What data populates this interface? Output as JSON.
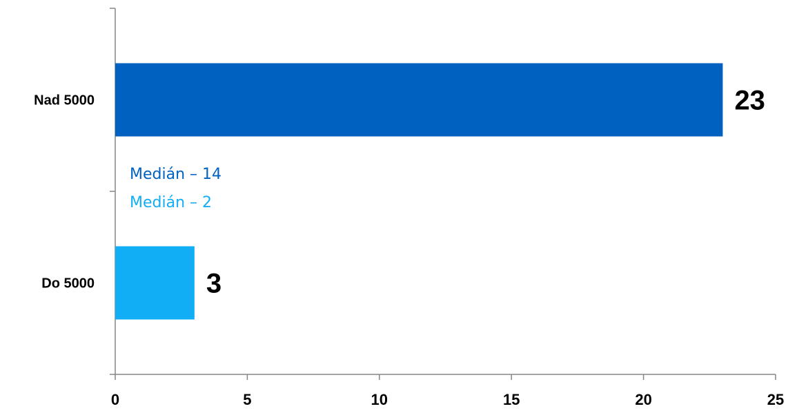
{
  "chart_data": {
    "type": "bar",
    "orientation": "horizontal",
    "categories": [
      "Do 5000",
      "Nad 5000"
    ],
    "values": [
      3,
      23
    ],
    "colors": [
      "#11AEF5",
      "#0061C0"
    ],
    "data_labels": [
      "3",
      "23"
    ],
    "xlim": [
      0,
      25
    ],
    "xticks": [
      0,
      5,
      10,
      15,
      20,
      25
    ],
    "title": "",
    "xlabel": "",
    "ylabel": "",
    "grid": false,
    "annotations": [
      {
        "text": "Medián – 14",
        "color": "#0061C0"
      },
      {
        "text": "Medián – 2",
        "color": "#11AEF5"
      }
    ]
  }
}
